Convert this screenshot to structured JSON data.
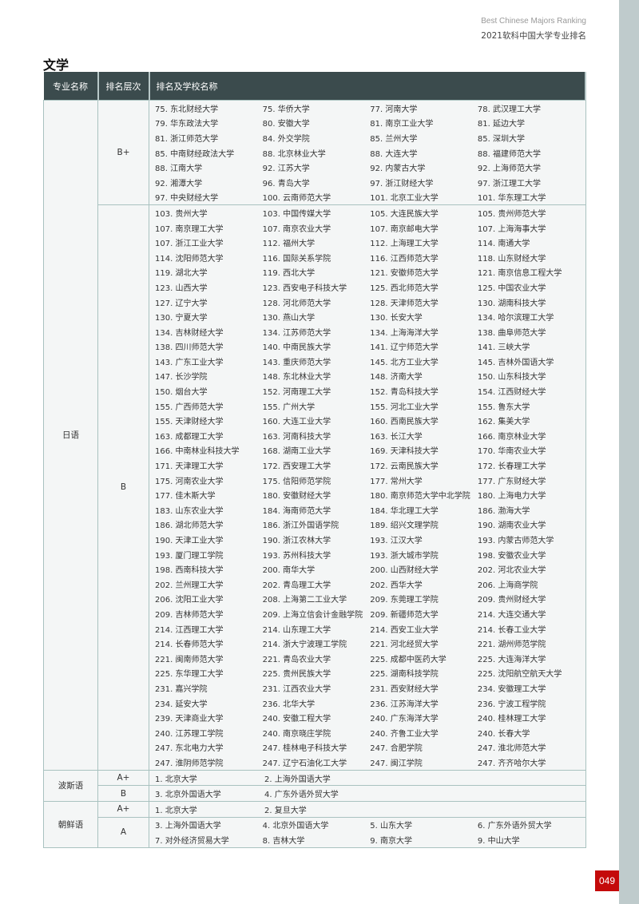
{
  "header": {
    "title_en": "Best Chinese Majors Ranking",
    "title_cn": "2021软科中国大学专业排名"
  },
  "section_title": "文学",
  "table": {
    "columns": [
      "专业名称",
      "排名层次",
      "排名及学校名称"
    ],
    "majors": [
      {
        "name": "日语",
        "tiers": [
          {
            "tier": "B+",
            "rows": [
              [
                "75. 东北财经大学",
                "75. 华侨大学",
                "77. 河南大学",
                "78. 武汉理工大学"
              ],
              [
                "79. 华东政法大学",
                "80. 安徽大学",
                "81. 南京工业大学",
                "81. 延边大学"
              ],
              [
                "81. 浙江师范大学",
                "84. 外交学院",
                "85. 兰州大学",
                "85. 深圳大学"
              ],
              [
                "85. 中南财经政法大学",
                "88. 北京林业大学",
                "88. 大连大学",
                "88. 福建师范大学"
              ],
              [
                "88. 江南大学",
                "92. 江苏大学",
                "92. 内蒙古大学",
                "92. 上海师范大学"
              ],
              [
                "92. 湘潭大学",
                "96. 青岛大学",
                "97. 浙江财经大学",
                "97. 浙江理工大学"
              ],
              [
                "97. 中央财经大学",
                "100. 云南师范大学",
                "101. 北京工业大学",
                "101. 华东理工大学"
              ]
            ]
          },
          {
            "tier": "B",
            "rows": [
              [
                "103. 贵州大学",
                "103. 中国传媒大学",
                "105. 大连民族大学",
                "105. 贵州师范大学"
              ],
              [
                "107. 南京理工大学",
                "107. 南京农业大学",
                "107. 南京邮电大学",
                "107. 上海海事大学"
              ],
              [
                "107. 浙江工业大学",
                "112. 福州大学",
                "112. 上海理工大学",
                "114. 南通大学"
              ],
              [
                "114. 沈阳师范大学",
                "116. 国际关系学院",
                "116. 江西师范大学",
                "118. 山东财经大学"
              ],
              [
                "119. 湖北大学",
                "119. 西北大学",
                "121. 安徽师范大学",
                "121. 南京信息工程大学"
              ],
              [
                "123. 山西大学",
                "123. 西安电子科技大学",
                "125. 西北师范大学",
                "125. 中国农业大学"
              ],
              [
                "127. 辽宁大学",
                "128. 河北师范大学",
                "128. 天津师范大学",
                "130. 湖南科技大学"
              ],
              [
                "130. 宁夏大学",
                "130. 燕山大学",
                "130. 长安大学",
                "134. 哈尔滨理工大学"
              ],
              [
                "134. 吉林财经大学",
                "134. 江苏师范大学",
                "134. 上海海洋大学",
                "138. 曲阜师范大学"
              ],
              [
                "138. 四川师范大学",
                "140. 中南民族大学",
                "141. 辽宁师范大学",
                "141. 三峡大学"
              ],
              [
                "143. 广东工业大学",
                "143. 重庆师范大学",
                "145. 北方工业大学",
                "145. 吉林外国语大学"
              ],
              [
                "147. 长沙学院",
                "148. 东北林业大学",
                "148. 济南大学",
                "150. 山东科技大学"
              ],
              [
                "150. 烟台大学",
                "152. 河南理工大学",
                "152. 青岛科技大学",
                "154. 江西财经大学"
              ],
              [
                "155. 广西师范大学",
                "155. 广州大学",
                "155. 河北工业大学",
                "155. 鲁东大学"
              ],
              [
                "155. 天津财经大学",
                "160. 大连工业大学",
                "160. 西南民族大学",
                "162. 集美大学"
              ],
              [
                "163. 成都理工大学",
                "163. 河南科技大学",
                "163. 长江大学",
                "166. 南京林业大学"
              ],
              [
                "166. 中南林业科技大学",
                "168. 湖南工业大学",
                "169. 天津科技大学",
                "170. 华南农业大学"
              ],
              [
                "171. 天津理工大学",
                "172. 西安理工大学",
                "172. 云南民族大学",
                "172. 长春理工大学"
              ],
              [
                "175. 河南农业大学",
                "175. 信阳师范学院",
                "177. 常州大学",
                "177. 广东财经大学"
              ],
              [
                "177. 佳木斯大学",
                "180. 安徽财经大学",
                "180. 南京师范大学中北学院",
                "180. 上海电力大学"
              ],
              [
                "183. 山东农业大学",
                "184. 海南师范大学",
                "184. 华北理工大学",
                "186. 渤海大学"
              ],
              [
                "186. 湖北师范大学",
                "186. 浙江外国语学院",
                "189. 绍兴文理学院",
                "190. 湖南农业大学"
              ],
              [
                "190. 天津工业大学",
                "190. 浙江农林大学",
                "193. 江汉大学",
                "193. 内蒙古师范大学"
              ],
              [
                "193. 厦门理工学院",
                "193. 苏州科技大学",
                "193. 浙大城市学院",
                "198. 安徽农业大学"
              ],
              [
                "198. 西南科技大学",
                "200. 南华大学",
                "200. 山西财经大学",
                "202. 河北农业大学"
              ],
              [
                "202. 兰州理工大学",
                "202. 青岛理工大学",
                "202. 西华大学",
                "206. 上海商学院"
              ],
              [
                "206. 沈阳工业大学",
                "208. 上海第二工业大学",
                "209. 东莞理工学院",
                "209. 贵州财经大学"
              ],
              [
                "209. 吉林师范大学",
                "209. 上海立信会计金融学院",
                "209. 新疆师范大学",
                "214. 大连交通大学"
              ],
              [
                "214. 江西理工大学",
                "214. 山东理工大学",
                "214. 西安工业大学",
                "214. 长春工业大学"
              ],
              [
                "214. 长春师范大学",
                "214. 浙大宁波理工学院",
                "221. 河北经贸大学",
                "221. 湖州师范学院"
              ],
              [
                "221. 闽南师范大学",
                "221. 青岛农业大学",
                "225. 成都中医药大学",
                "225. 大连海洋大学"
              ],
              [
                "225. 东华理工大学",
                "225. 贵州民族大学",
                "225. 湖南科技学院",
                "225. 沈阳航空航天大学"
              ],
              [
                "231. 嘉兴学院",
                "231. 江西农业大学",
                "231. 西安财经大学",
                "234. 安徽理工大学"
              ],
              [
                "234. 延安大学",
                "236. 北华大学",
                "236. 江苏海洋大学",
                "236. 宁波工程学院"
              ],
              [
                "239. 天津商业大学",
                "240. 安徽工程大学",
                "240. 广东海洋大学",
                "240. 桂林理工大学"
              ],
              [
                "240. 江苏理工学院",
                "240. 南京晓庄学院",
                "240. 齐鲁工业大学",
                "240. 长春大学"
              ],
              [
                "247. 东北电力大学",
                "247. 桂林电子科技大学",
                "247. 合肥学院",
                "247. 淮北师范大学"
              ],
              [
                "247. 淮阴师范学院",
                "247. 辽宁石油化工大学",
                "247. 闽江学院",
                "247. 齐齐哈尔大学"
              ]
            ]
          }
        ]
      },
      {
        "name": "波斯语",
        "tiers": [
          {
            "tier": "A+",
            "rows": [
              [
                "1. 北京大学",
                "2. 上海外国语大学"
              ]
            ]
          },
          {
            "tier": "B",
            "rows": [
              [
                "3. 北京外国语大学",
                "4. 广东外语外贸大学"
              ]
            ]
          }
        ]
      },
      {
        "name": "朝鲜语",
        "tiers": [
          {
            "tier": "A+",
            "rows": [
              [
                "1. 北京大学",
                "2. 复旦大学"
              ]
            ]
          },
          {
            "tier": "A",
            "rows": [
              [
                "3. 上海外国语大学",
                "4. 北京外国语大学",
                "5. 山东大学",
                "6. 广东外语外贸大学"
              ],
              [
                "7. 对外经济贸易大学",
                "8. 吉林大学",
                "9. 南京大学",
                "9. 中山大学"
              ]
            ]
          }
        ]
      }
    ]
  },
  "page_number": "049",
  "colors": {
    "header_bg": "#3b4b4d",
    "page_number_bg": "#c40a0a",
    "border": "#a9c2c0"
  }
}
